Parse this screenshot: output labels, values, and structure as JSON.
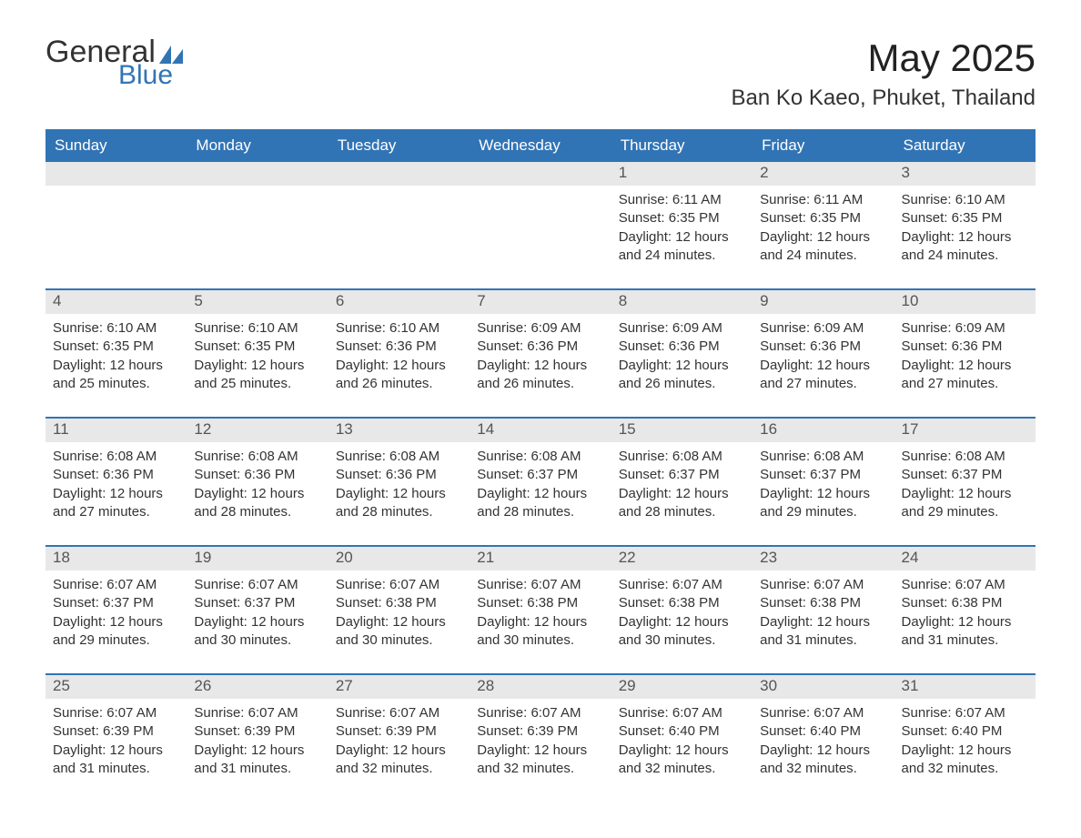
{
  "logo": {
    "text1": "General",
    "text2": "Blue",
    "shape_color": "#3174b5"
  },
  "title": "May 2025",
  "location": "Ban Ko Kaeo, Phuket, Thailand",
  "colors": {
    "header_bg": "#3174b5",
    "header_text": "#ffffff",
    "daynum_bg": "#e8e8e8",
    "text": "#333333",
    "rule": "#3174b5"
  },
  "weekdays": [
    "Sunday",
    "Monday",
    "Tuesday",
    "Wednesday",
    "Thursday",
    "Friday",
    "Saturday"
  ],
  "weeks": [
    [
      {
        "n": "",
        "lines": []
      },
      {
        "n": "",
        "lines": []
      },
      {
        "n": "",
        "lines": []
      },
      {
        "n": "",
        "lines": []
      },
      {
        "n": "1",
        "lines": [
          "Sunrise: 6:11 AM",
          "Sunset: 6:35 PM",
          "Daylight: 12 hours and 24 minutes."
        ]
      },
      {
        "n": "2",
        "lines": [
          "Sunrise: 6:11 AM",
          "Sunset: 6:35 PM",
          "Daylight: 12 hours and 24 minutes."
        ]
      },
      {
        "n": "3",
        "lines": [
          "Sunrise: 6:10 AM",
          "Sunset: 6:35 PM",
          "Daylight: 12 hours and 24 minutes."
        ]
      }
    ],
    [
      {
        "n": "4",
        "lines": [
          "Sunrise: 6:10 AM",
          "Sunset: 6:35 PM",
          "Daylight: 12 hours and 25 minutes."
        ]
      },
      {
        "n": "5",
        "lines": [
          "Sunrise: 6:10 AM",
          "Sunset: 6:35 PM",
          "Daylight: 12 hours and 25 minutes."
        ]
      },
      {
        "n": "6",
        "lines": [
          "Sunrise: 6:10 AM",
          "Sunset: 6:36 PM",
          "Daylight: 12 hours and 26 minutes."
        ]
      },
      {
        "n": "7",
        "lines": [
          "Sunrise: 6:09 AM",
          "Sunset: 6:36 PM",
          "Daylight: 12 hours and 26 minutes."
        ]
      },
      {
        "n": "8",
        "lines": [
          "Sunrise: 6:09 AM",
          "Sunset: 6:36 PM",
          "Daylight: 12 hours and 26 minutes."
        ]
      },
      {
        "n": "9",
        "lines": [
          "Sunrise: 6:09 AM",
          "Sunset: 6:36 PM",
          "Daylight: 12 hours and 27 minutes."
        ]
      },
      {
        "n": "10",
        "lines": [
          "Sunrise: 6:09 AM",
          "Sunset: 6:36 PM",
          "Daylight: 12 hours and 27 minutes."
        ]
      }
    ],
    [
      {
        "n": "11",
        "lines": [
          "Sunrise: 6:08 AM",
          "Sunset: 6:36 PM",
          "Daylight: 12 hours and 27 minutes."
        ]
      },
      {
        "n": "12",
        "lines": [
          "Sunrise: 6:08 AM",
          "Sunset: 6:36 PM",
          "Daylight: 12 hours and 28 minutes."
        ]
      },
      {
        "n": "13",
        "lines": [
          "Sunrise: 6:08 AM",
          "Sunset: 6:36 PM",
          "Daylight: 12 hours and 28 minutes."
        ]
      },
      {
        "n": "14",
        "lines": [
          "Sunrise: 6:08 AM",
          "Sunset: 6:37 PM",
          "Daylight: 12 hours and 28 minutes."
        ]
      },
      {
        "n": "15",
        "lines": [
          "Sunrise: 6:08 AM",
          "Sunset: 6:37 PM",
          "Daylight: 12 hours and 28 minutes."
        ]
      },
      {
        "n": "16",
        "lines": [
          "Sunrise: 6:08 AM",
          "Sunset: 6:37 PM",
          "Daylight: 12 hours and 29 minutes."
        ]
      },
      {
        "n": "17",
        "lines": [
          "Sunrise: 6:08 AM",
          "Sunset: 6:37 PM",
          "Daylight: 12 hours and 29 minutes."
        ]
      }
    ],
    [
      {
        "n": "18",
        "lines": [
          "Sunrise: 6:07 AM",
          "Sunset: 6:37 PM",
          "Daylight: 12 hours and 29 minutes."
        ]
      },
      {
        "n": "19",
        "lines": [
          "Sunrise: 6:07 AM",
          "Sunset: 6:37 PM",
          "Daylight: 12 hours and 30 minutes."
        ]
      },
      {
        "n": "20",
        "lines": [
          "Sunrise: 6:07 AM",
          "Sunset: 6:38 PM",
          "Daylight: 12 hours and 30 minutes."
        ]
      },
      {
        "n": "21",
        "lines": [
          "Sunrise: 6:07 AM",
          "Sunset: 6:38 PM",
          "Daylight: 12 hours and 30 minutes."
        ]
      },
      {
        "n": "22",
        "lines": [
          "Sunrise: 6:07 AM",
          "Sunset: 6:38 PM",
          "Daylight: 12 hours and 30 minutes."
        ]
      },
      {
        "n": "23",
        "lines": [
          "Sunrise: 6:07 AM",
          "Sunset: 6:38 PM",
          "Daylight: 12 hours and 31 minutes."
        ]
      },
      {
        "n": "24",
        "lines": [
          "Sunrise: 6:07 AM",
          "Sunset: 6:38 PM",
          "Daylight: 12 hours and 31 minutes."
        ]
      }
    ],
    [
      {
        "n": "25",
        "lines": [
          "Sunrise: 6:07 AM",
          "Sunset: 6:39 PM",
          "Daylight: 12 hours and 31 minutes."
        ]
      },
      {
        "n": "26",
        "lines": [
          "Sunrise: 6:07 AM",
          "Sunset: 6:39 PM",
          "Daylight: 12 hours and 31 minutes."
        ]
      },
      {
        "n": "27",
        "lines": [
          "Sunrise: 6:07 AM",
          "Sunset: 6:39 PM",
          "Daylight: 12 hours and 32 minutes."
        ]
      },
      {
        "n": "28",
        "lines": [
          "Sunrise: 6:07 AM",
          "Sunset: 6:39 PM",
          "Daylight: 12 hours and 32 minutes."
        ]
      },
      {
        "n": "29",
        "lines": [
          "Sunrise: 6:07 AM",
          "Sunset: 6:40 PM",
          "Daylight: 12 hours and 32 minutes."
        ]
      },
      {
        "n": "30",
        "lines": [
          "Sunrise: 6:07 AM",
          "Sunset: 6:40 PM",
          "Daylight: 12 hours and 32 minutes."
        ]
      },
      {
        "n": "31",
        "lines": [
          "Sunrise: 6:07 AM",
          "Sunset: 6:40 PM",
          "Daylight: 12 hours and 32 minutes."
        ]
      }
    ]
  ]
}
